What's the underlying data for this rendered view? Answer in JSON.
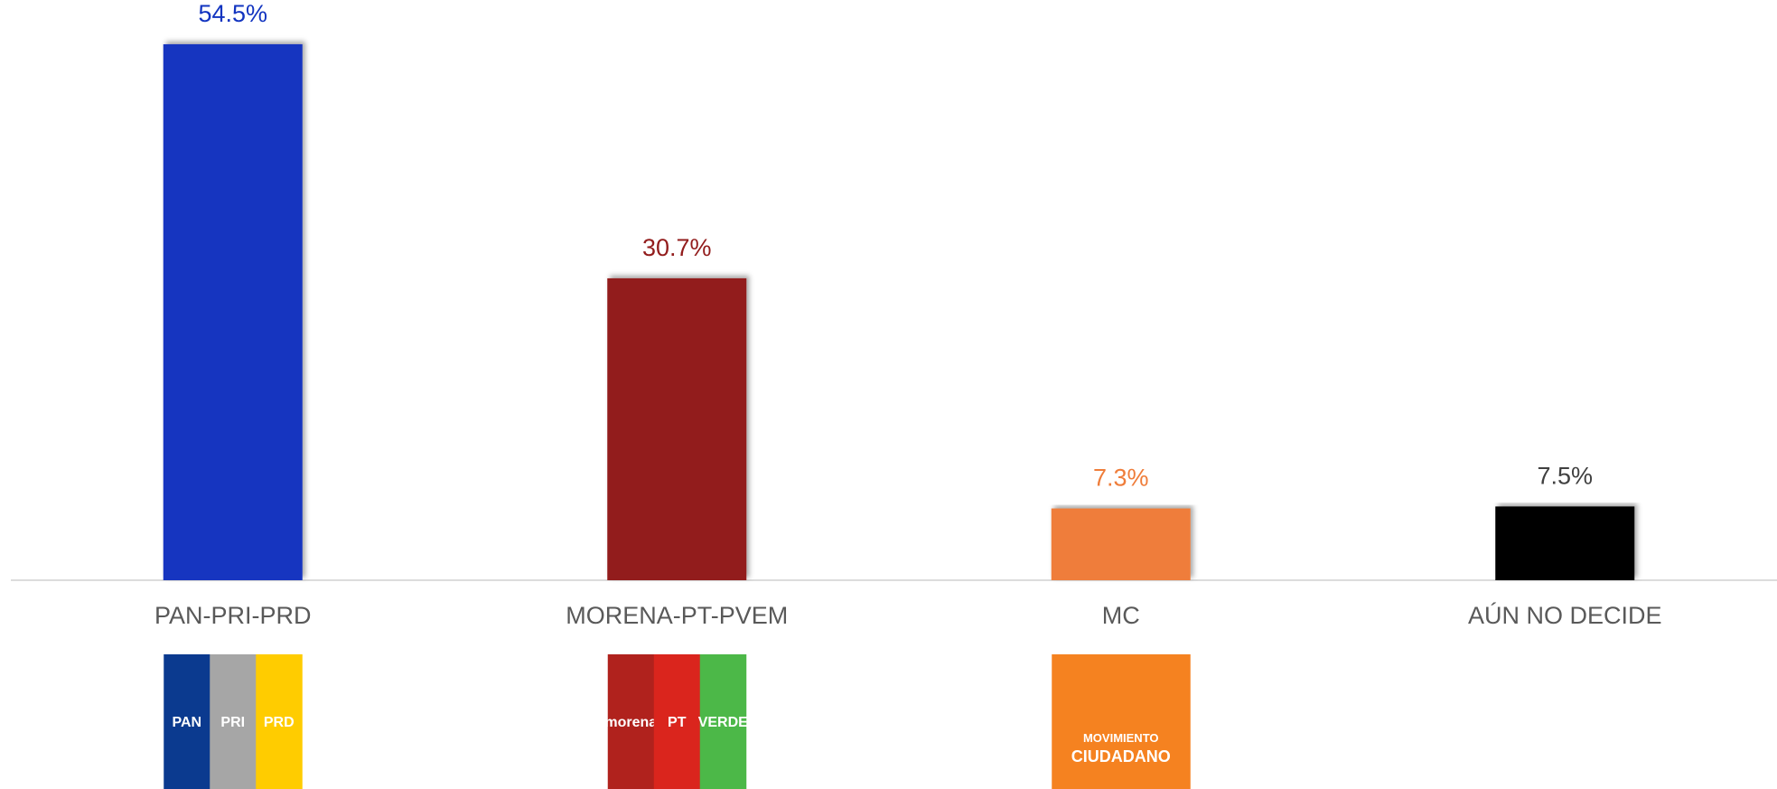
{
  "chart_data": {
    "type": "bar",
    "categories": [
      "PAN-PRI-PRD",
      "MORENA-PT-PVEM",
      "MC",
      "AÚN NO DECIDE"
    ],
    "values": [
      54.5,
      30.7,
      7.3,
      7.5
    ],
    "value_labels": [
      "54.5%",
      "30.7%",
      "7.3%",
      "7.5%"
    ],
    "colors": [
      "#1234c0",
      "#921c1c",
      "#ef7d3a",
      "#000000"
    ],
    "ylim": [
      0,
      59
    ],
    "logos": [
      [
        {
          "text": "PAN",
          "color": "#0b3a8f"
        },
        {
          "text": "PRI",
          "color": "#a6a6a6"
        },
        {
          "text": "PRD",
          "color": "#ffcc00"
        }
      ],
      [
        {
          "text": "morena",
          "color": "#b0221d"
        },
        {
          "text": "PT",
          "color": "#da251d"
        },
        {
          "text": "VERDE",
          "color": "#4cb848"
        }
      ],
      [
        {
          "text": "MOVIMIENTO CIUDADANO",
          "color": "#f58220"
        }
      ]
    ]
  }
}
